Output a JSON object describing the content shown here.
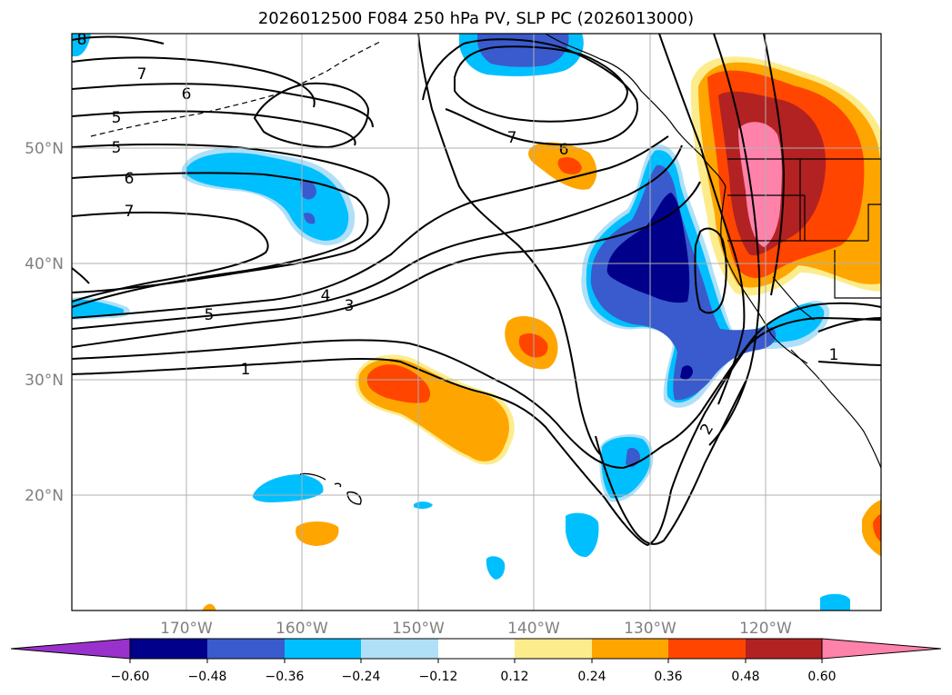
{
  "title": "2026012500 F084 250 hPa PV, SLP PC (2026013000)",
  "lat_labels": [
    "50°N",
    "40°N",
    "30°N",
    "20°N"
  ],
  "lon_labels": [
    "170°W",
    "160°W",
    "150°W",
    "140°W",
    "130°W",
    "120°W"
  ],
  "colorbar": {
    "ticks": [
      "−0.60",
      "−0.48",
      "−0.36",
      "−0.24",
      "−0.12",
      "0.12",
      "0.24",
      "0.36",
      "0.48",
      "0.60"
    ],
    "colors": [
      "#9932cc",
      "#00008b",
      "#3a5bcd",
      "#00bfff",
      "#b0e0f8",
      "#ffffff",
      "#fdec8c",
      "#ffa500",
      "#ff4500",
      "#b22222",
      "#ff82ab"
    ]
  },
  "contour_labels": {
    "c8": "8",
    "c7a": "7",
    "c6a": "6",
    "c5a": "5",
    "c5b": "5",
    "c6b": "6",
    "c7b": "7",
    "c5c": "5",
    "c4": "4",
    "c3": "3",
    "c1": "1",
    "c7c": "7",
    "c6c": "6",
    "c2": "2",
    "c1b": "1"
  }
}
